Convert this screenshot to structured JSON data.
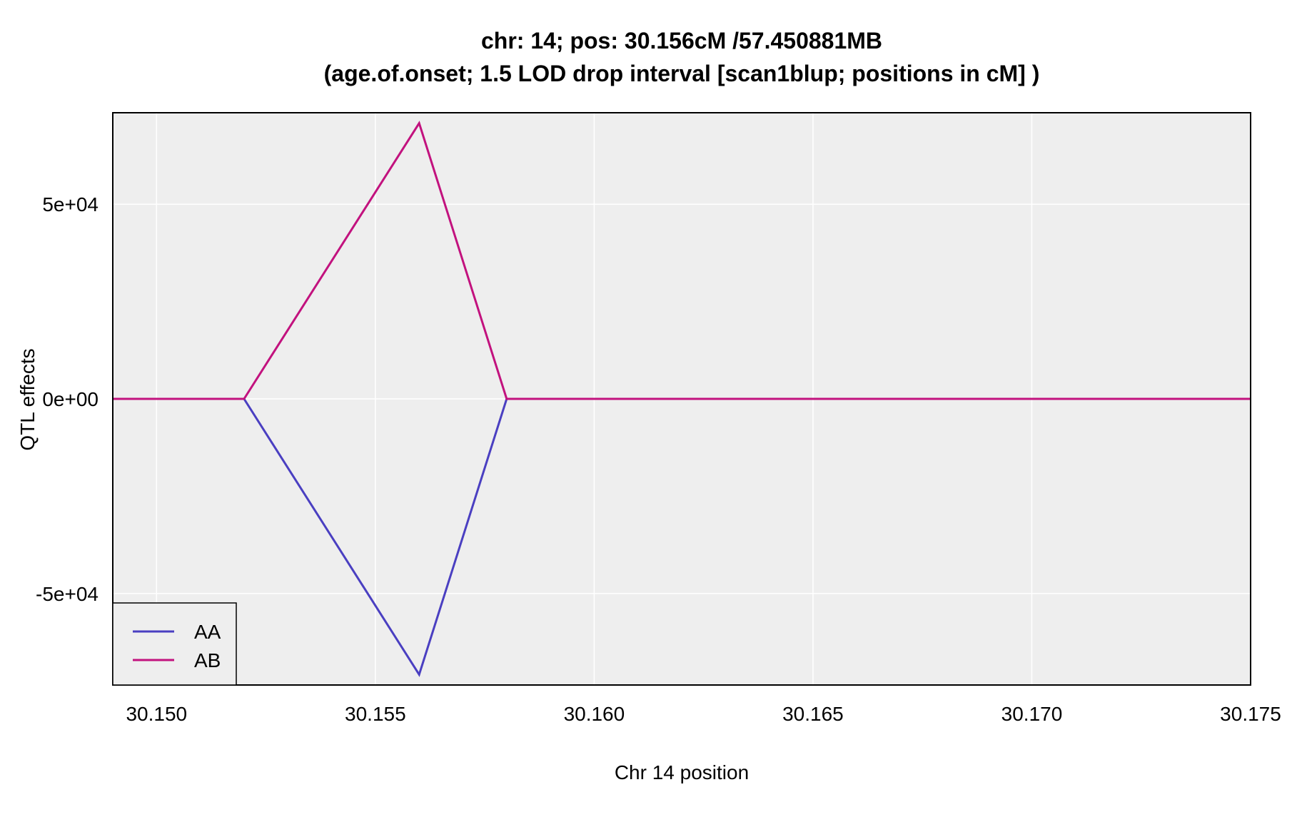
{
  "chart_data": {
    "type": "line",
    "title_line1": "chr: 14; pos: 30.156cM /57.450881MB",
    "title_line2": "(age.of.onset; 1.5 LOD drop interval [scan1blup; positions in cM] )",
    "xlabel": "Chr 14 position",
    "ylabel": "QTL effects",
    "xlim": [
      30.149,
      30.175
    ],
    "ylim": [
      -73500,
      73500
    ],
    "x_ticks": [
      30.15,
      30.155,
      30.16,
      30.165,
      30.17,
      30.175
    ],
    "x_tick_labels": [
      "30.150",
      "30.155",
      "30.160",
      "30.165",
      "30.170",
      "30.175"
    ],
    "y_ticks": [
      50000,
      0,
      -50000
    ],
    "y_tick_labels": [
      "5e+04",
      "0e+00",
      "-5e+04"
    ],
    "grid": true,
    "panel_background": "#eeeeee",
    "grid_color": "#ffffff",
    "legend_position": "bottom-left",
    "series": [
      {
        "name": "AA",
        "color": "#4a3fc1",
        "x": [
          30.149,
          30.152,
          30.156,
          30.158,
          30.175
        ],
        "y": [
          0,
          0,
          -70800,
          0,
          0
        ]
      },
      {
        "name": "AB",
        "color": "#c2127e",
        "x": [
          30.149,
          30.152,
          30.156,
          30.158,
          30.175
        ],
        "y": [
          0,
          0,
          70800,
          0,
          0
        ]
      }
    ]
  }
}
